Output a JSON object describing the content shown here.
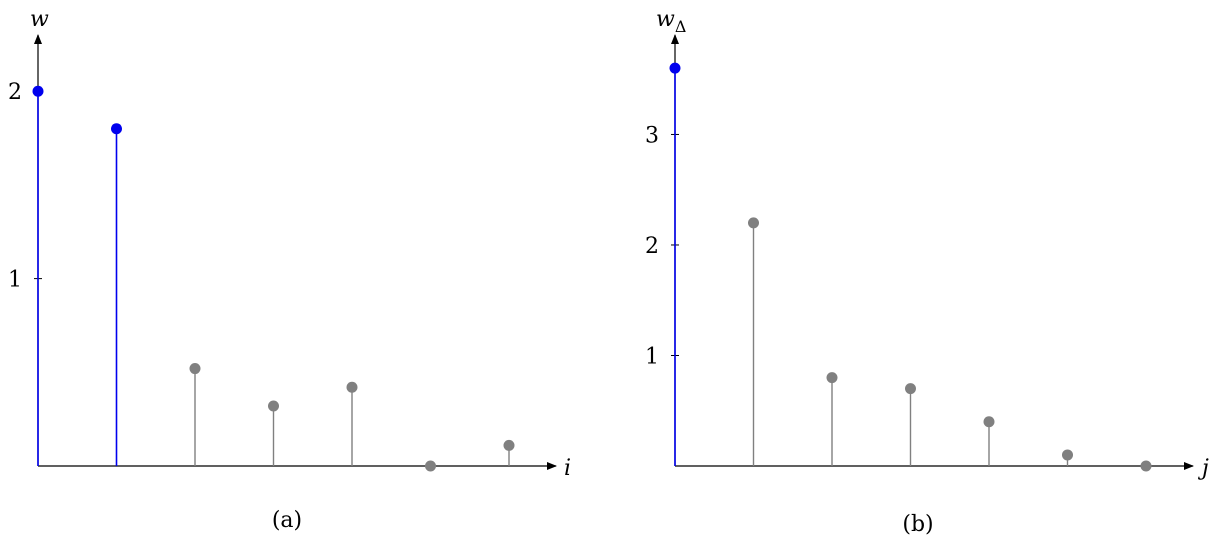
{
  "colors": {
    "highlight": "#0000ee",
    "normal": "#808080",
    "axis": "#000000"
  },
  "chart_data": [
    {
      "type": "stem",
      "xlabel": "i",
      "ylabel": "w",
      "ylabel_sub": "",
      "caption": "(a)",
      "x": [
        0,
        1,
        2,
        3,
        4,
        5,
        6
      ],
      "values": [
        2.0,
        1.8,
        0.52,
        0.32,
        0.42,
        0.0,
        0.11
      ],
      "highlight": [
        true,
        true,
        false,
        false,
        false,
        false,
        false
      ],
      "xlim": [
        0,
        6.5
      ],
      "ylim": [
        0,
        2.3
      ],
      "yticks": [
        1,
        2
      ],
      "ytick_labels": [
        "1",
        "2"
      ]
    },
    {
      "type": "stem",
      "xlabel": "j",
      "ylabel": "w",
      "ylabel_sub": "Δ",
      "caption": "(b)",
      "x": [
        0,
        1,
        2,
        3,
        4,
        5,
        6
      ],
      "values": [
        3.6,
        2.2,
        0.8,
        0.7,
        0.4,
        0.1,
        0.0
      ],
      "highlight": [
        true,
        false,
        false,
        false,
        false,
        false,
        false
      ],
      "xlim": [
        0,
        6.5
      ],
      "ylim": [
        0,
        3.9
      ],
      "yticks": [
        1,
        2,
        3
      ],
      "ytick_labels": [
        "1",
        "2",
        "3"
      ]
    }
  ]
}
